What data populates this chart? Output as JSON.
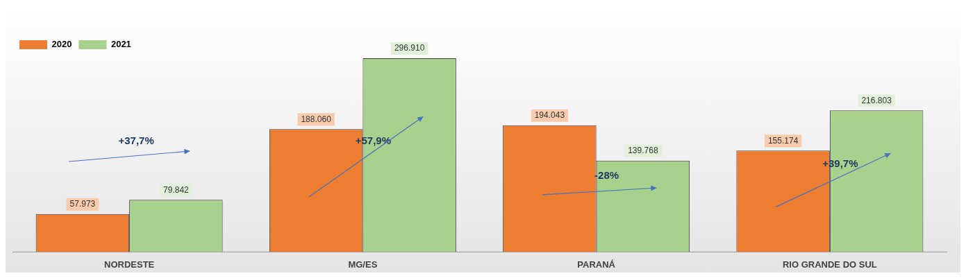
{
  "chart_data": {
    "type": "bar",
    "categories": [
      "NORDESTE",
      "MG/ES",
      "PARANÁ",
      "RIO GRANDE DO SUL"
    ],
    "series": [
      {
        "name": "2020",
        "color": "#ed7d31",
        "values": [
          57973,
          188060,
          194043,
          155174
        ],
        "value_labels": [
          "57.973",
          "188.060",
          "194.043",
          "155.174"
        ]
      },
      {
        "name": "2021",
        "color": "#a9d18e",
        "values": [
          79842,
          296910,
          139768,
          216803
        ],
        "value_labels": [
          "79.842",
          "296.910",
          "139.768",
          "216.803"
        ]
      }
    ],
    "annotations": [
      "+37,7%",
      "+57,9%",
      "-28%",
      "+39,7%"
    ],
    "legend": "top left",
    "grid": false
  }
}
